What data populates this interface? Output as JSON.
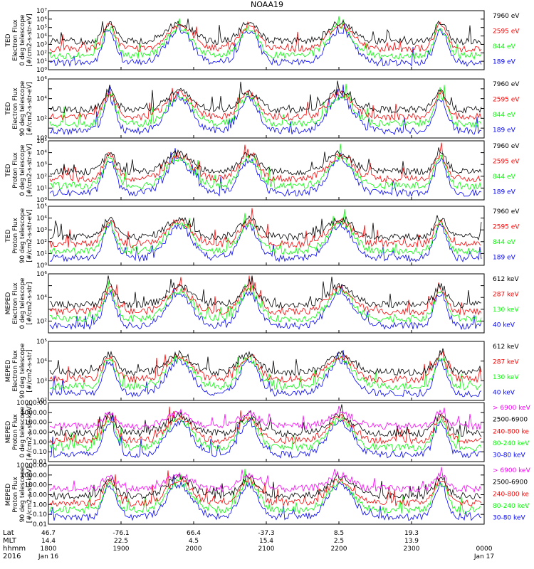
{
  "title": "NOAA19",
  "colors": {
    "blue": "#0000ff",
    "red": "#ff0000",
    "green": "#00ff00",
    "black": "#000000",
    "magenta": "#ff00ff"
  },
  "chart_data": [
    {
      "type": "line",
      "ylabel": [
        "TED",
        "Electron Flux",
        "0 deg telescope",
        "[#/cm2-s-str-eV]"
      ],
      "log": true,
      "ylim_exp": [
        0,
        7
      ],
      "tick_labels": [
        "10⁰",
        "10¹",
        "10²",
        "10³",
        "10⁴",
        "10⁵",
        "10⁶",
        "10⁷"
      ],
      "legend": [
        {
          "label": "7960 eV",
          "color": "black"
        },
        {
          "label": "2595 eV",
          "color": "red"
        },
        {
          "label": "844 eV",
          "color": "green"
        },
        {
          "label": "189 eV",
          "color": "blue"
        }
      ]
    },
    {
      "type": "line",
      "ylabel": [
        "TED",
        "Electron Flux",
        "90 deg telescope",
        "[#/cm2-s-str-eV]"
      ],
      "log": true,
      "ylim_exp": [
        0,
        6
      ],
      "tick_labels": [
        "10⁰",
        "",
        "10²",
        "",
        "10⁴",
        "",
        "10⁶"
      ],
      "legend": [
        {
          "label": "7960 eV",
          "color": "black"
        },
        {
          "label": "2595 eV",
          "color": "red"
        },
        {
          "label": "844 eV",
          "color": "green"
        },
        {
          "label": "189 eV",
          "color": "blue"
        }
      ]
    },
    {
      "type": "line",
      "ylabel": [
        "TED",
        "Proton Flux",
        "0 deg telescope",
        "[#/cm2-s-str-eV]"
      ],
      "log": true,
      "ylim_exp": [
        0,
        5
      ],
      "tick_labels": [
        "10⁰",
        "10¹",
        "10²",
        "10³",
        "10⁴",
        "10⁵"
      ],
      "legend": [
        {
          "label": "7960 eV",
          "color": "black"
        },
        {
          "label": "2595 eV",
          "color": "red"
        },
        {
          "label": "844 eV",
          "color": "green"
        },
        {
          "label": "189 eV",
          "color": "blue"
        }
      ]
    },
    {
      "type": "line",
      "ylabel": [
        "TED",
        "Proton Flux",
        "90 deg telescope",
        "[#/cm2-s-str-eV]"
      ],
      "log": true,
      "ylim_exp": [
        0,
        5
      ],
      "tick_labels": [
        "10⁰",
        "10¹",
        "10²",
        "10³",
        "10⁴",
        "10⁵"
      ],
      "legend": [
        {
          "label": "7960 eV",
          "color": "black"
        },
        {
          "label": "2595 eV",
          "color": "red"
        },
        {
          "label": "844 eV",
          "color": "green"
        },
        {
          "label": "189 eV",
          "color": "blue"
        }
      ]
    },
    {
      "type": "line",
      "ylabel": [
        "MEPED",
        "Electron Flux",
        "0 deg telescope",
        "[#/cm2-s-str]"
      ],
      "log": true,
      "ylim_exp": [
        1,
        6
      ],
      "tick_labels": [
        "",
        "10²",
        "",
        "10⁴",
        "",
        "10⁶"
      ],
      "legend": [
        {
          "label": "612 keV",
          "color": "black"
        },
        {
          "label": "287 keV",
          "color": "red"
        },
        {
          "label": "130 keV",
          "color": "green"
        },
        {
          "label": "40 keV",
          "color": "blue"
        }
      ]
    },
    {
      "type": "line",
      "ylabel": [
        "MEPED",
        "Electron Flux",
        "90 deg telescope",
        "[#/cm2-s-str]"
      ],
      "log": true,
      "ylim_exp": [
        1.5,
        5.5
      ],
      "tick_labels": [
        "10²",
        "10³",
        "10⁴",
        "10⁵"
      ],
      "legend": [
        {
          "label": "612 keV",
          "color": "black"
        },
        {
          "label": "287 keV",
          "color": "red"
        },
        {
          "label": "130 keV",
          "color": "green"
        },
        {
          "label": "40 keV",
          "color": "blue"
        }
      ]
    },
    {
      "type": "line",
      "ylabel": [
        "MEPED",
        "Proton Flux",
        "0 deg telescope",
        "[#/cm2-s-str-keV]"
      ],
      "log": true,
      "ylim_exp": [
        -2,
        4
      ],
      "tick_labels": [
        "0.01",
        "0.10",
        "1.00",
        "10.00",
        "100.00",
        "1000.00",
        "10000.00"
      ],
      "legend": [
        {
          "label": "> 6900 keV",
          "color": "magenta"
        },
        {
          "label": "2500-6900",
          "color": "black"
        },
        {
          "label": "240-800 ke",
          "color": "red"
        },
        {
          "label": "80-240 keV",
          "color": "green"
        },
        {
          "label": "30-80 keV",
          "color": "blue"
        }
      ]
    },
    {
      "type": "line",
      "ylabel": [
        "MEPED",
        "Proton Flux",
        "90 deg telescope",
        "[#/cm2-s-str-keV]"
      ],
      "log": true,
      "ylim_exp": [
        -2,
        4
      ],
      "tick_labels": [
        "0.01",
        "0.10",
        "1.00",
        "10.00",
        "100.00",
        "1000.00",
        "10000.00"
      ],
      "legend": [
        {
          "label": "> 6900 keV",
          "color": "magenta"
        },
        {
          "label": "2500-6900",
          "color": "black"
        },
        {
          "label": "240-800 ke",
          "color": "red"
        },
        {
          "label": "80-240 keV",
          "color": "green"
        },
        {
          "label": "30-80 keV",
          "color": "blue"
        }
      ]
    }
  ],
  "xaxis": {
    "row_labels": [
      "Lat",
      "MLT",
      "hhmm",
      "2016"
    ],
    "ticks": [
      {
        "lat": "46.7",
        "mlt": "14.4",
        "hhmm": "1800",
        "date": "Jan 16"
      },
      {
        "lat": "-76.1",
        "mlt": "22.5",
        "hhmm": "1900",
        "date": ""
      },
      {
        "lat": "66.4",
        "mlt": "4.5",
        "hhmm": "2000",
        "date": ""
      },
      {
        "lat": "-37.3",
        "mlt": "15.4",
        "hhmm": "2100",
        "date": ""
      },
      {
        "lat": "8.5",
        "mlt": "2.5",
        "hhmm": "2200",
        "date": ""
      },
      {
        "lat": "19.3",
        "mlt": "13.9",
        "hhmm": "2300",
        "date": ""
      },
      {
        "lat": "",
        "mlt": "",
        "hhmm": "0000",
        "date": "Jan 17"
      }
    ]
  }
}
